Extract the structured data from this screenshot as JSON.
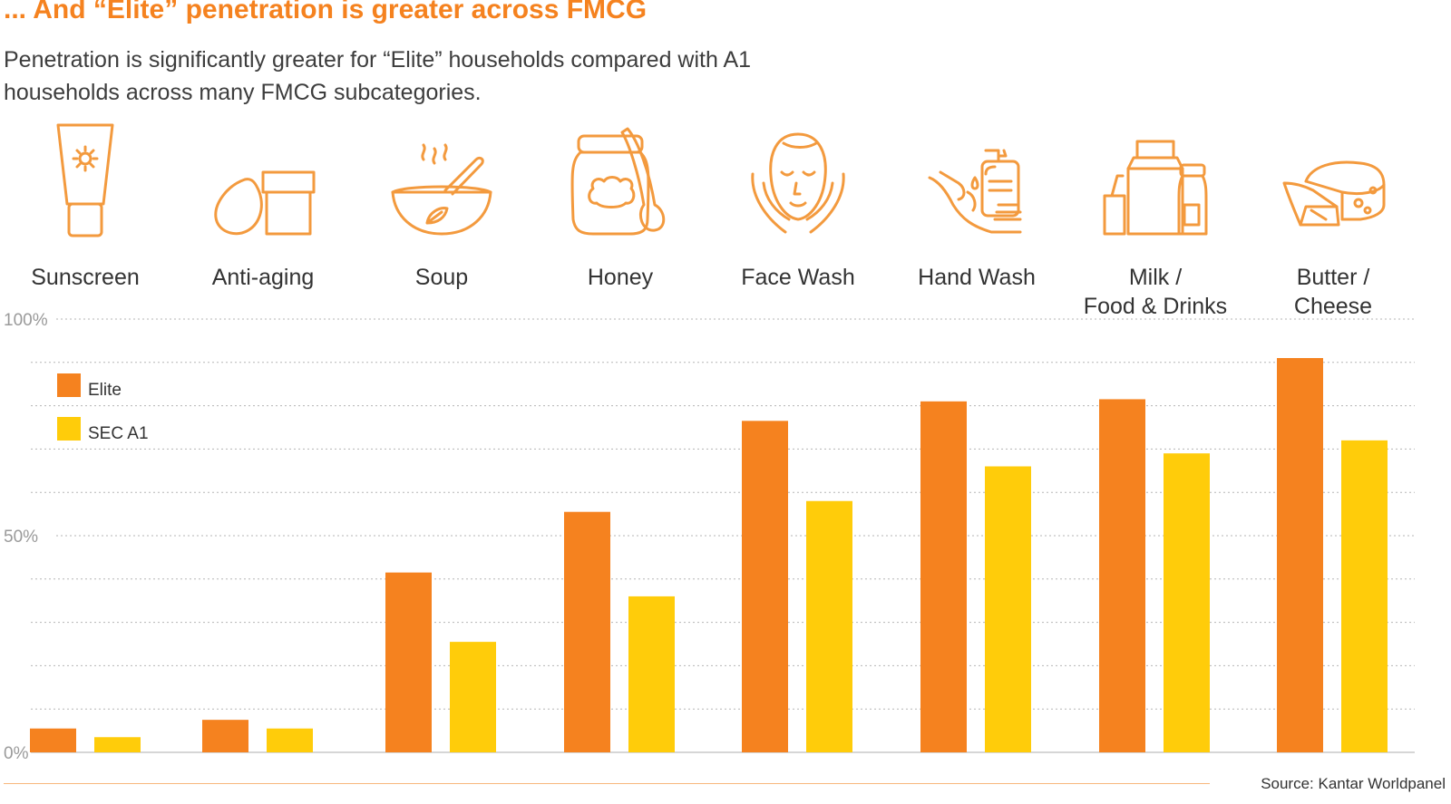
{
  "header": {
    "title": "... And “Elite” penetration is greater across FMCG",
    "subtitle": "Penetration is significantly greater for “Elite” households compared with A1 households across many FMCG subcategories."
  },
  "colors": {
    "accent": "#F5821F",
    "elite": "#F5821F",
    "sec_a1": "#FFCC0A",
    "grid": "#b5b5b5",
    "icon": "#F39A3E"
  },
  "categories_meta": [
    {
      "label": "Sunscreen",
      "icon": "sunscreen-icon"
    },
    {
      "label": "Anti-aging",
      "icon": "anti-aging-icon"
    },
    {
      "label": "Soup",
      "icon": "soup-icon"
    },
    {
      "label": "Honey",
      "icon": "honey-icon"
    },
    {
      "label": "Face Wash",
      "icon": "face-wash-icon"
    },
    {
      "label": "Hand Wash",
      "icon": "hand-wash-icon"
    },
    {
      "label": "Milk /\nFood & Drinks",
      "icon": "milk-icon"
    },
    {
      "label": "Butter /\nCheese",
      "icon": "cheese-icon"
    }
  ],
  "chart_data": {
    "type": "bar",
    "title": "... And “Elite” penetration is greater across FMCG",
    "categories": [
      "Sunscreen",
      "Anti-aging",
      "Soup",
      "Honey",
      "Face Wash",
      "Hand Wash",
      "Milk / Food & Drinks",
      "Butter / Cheese"
    ],
    "series": [
      {
        "name": "Elite",
        "values": [
          5.5,
          7.5,
          41.5,
          55.5,
          76.5,
          81,
          81.5,
          91
        ]
      },
      {
        "name": "SEC A1",
        "values": [
          3.5,
          5.5,
          25.5,
          36,
          58,
          66,
          69,
          72
        ]
      }
    ],
    "ylim": [
      0,
      100
    ],
    "yticks": [
      0,
      50,
      100
    ],
    "ytick_labels": [
      "0%",
      "50%",
      "100%"
    ],
    "grid": true,
    "legend_position": "top-left",
    "xlabel": "",
    "ylabel": ""
  },
  "footer": {
    "source": "Source: Kantar Worldpanel"
  }
}
